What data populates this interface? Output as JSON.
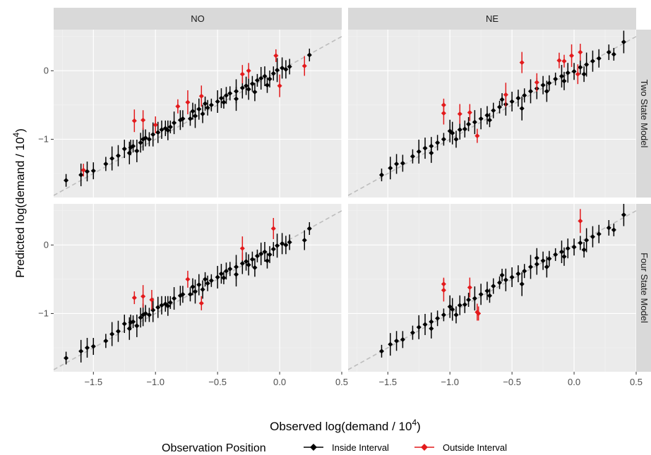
{
  "chart_data": {
    "type": "scatter",
    "subtype": "faceted scatter with vertical error bars",
    "xlabel": "Observed log(demand / 10",
    "xlabel_sup": "4",
    "xlabel_end": ")",
    "ylabel": "Predicted log(demand / 10",
    "ylabel_sup": "4",
    "ylabel_end": ")",
    "column_facets": [
      "NO",
      "NE"
    ],
    "row_facets": [
      "Two State Model",
      "Four State Model"
    ],
    "xlim": [
      -1.82,
      0.5
    ],
    "ylim": [
      -1.85,
      0.6
    ],
    "x_ticks": [
      -1.5,
      -1.0,
      -0.5,
      0.0,
      0.5
    ],
    "x_tick_labels": [
      "−1.5",
      "−1.0",
      "−0.5",
      "0.0",
      "0.5"
    ],
    "y_ticks": [
      0,
      -1
    ],
    "y_tick_labels": [
      "0",
      "−1"
    ],
    "reference_line": {
      "style": "dashed",
      "color": "#bdbdbd",
      "intercept": 0.0,
      "slope": 1.0
    },
    "grid": true,
    "panel_background": "#ebebeb",
    "strip_background": "#d9d9d9",
    "legend": {
      "title": "Observation Position",
      "position": "bottom",
      "entries": [
        {
          "label": "Inside Interval",
          "color": "#000000"
        },
        {
          "label": "Outside Interval",
          "color": "#e31a1c"
        }
      ]
    },
    "panels": [
      {
        "col": "NO",
        "row": "Two State Model",
        "inside": [
          [
            -1.72,
            -1.6
          ],
          [
            -1.6,
            -1.52
          ],
          [
            -1.55,
            -1.47
          ],
          [
            -1.5,
            -1.46
          ],
          [
            -1.4,
            -1.36
          ],
          [
            -1.35,
            -1.28
          ],
          [
            -1.3,
            -1.24
          ],
          [
            -1.25,
            -1.14
          ],
          [
            -1.2,
            -1.12
          ],
          [
            -1.18,
            -1.1
          ],
          [
            -1.15,
            -1.17
          ],
          [
            -1.12,
            -1.05
          ],
          [
            -1.08,
            -0.98
          ],
          [
            -1.05,
            -1.0
          ],
          [
            -1.02,
            -0.93
          ],
          [
            -0.98,
            -0.9
          ],
          [
            -0.95,
            -0.86
          ],
          [
            -0.92,
            -0.84
          ],
          [
            -0.88,
            -0.82
          ],
          [
            -0.85,
            -0.76
          ],
          [
            -0.8,
            -0.72
          ],
          [
            -0.78,
            -0.7
          ],
          [
            -0.72,
            -0.7
          ],
          [
            -0.68,
            -0.66
          ],
          [
            -0.65,
            -0.56
          ],
          [
            -0.62,
            -0.63
          ],
          [
            -0.58,
            -0.54
          ],
          [
            -0.55,
            -0.5
          ],
          [
            -0.5,
            -0.45
          ],
          [
            -0.47,
            -0.4
          ],
          [
            -0.43,
            -0.36
          ],
          [
            -0.4,
            -0.33
          ],
          [
            -0.35,
            -0.3
          ],
          [
            -0.3,
            -0.25
          ],
          [
            -0.27,
            -0.22
          ],
          [
            -0.22,
            -0.19
          ],
          [
            -0.18,
            -0.14
          ],
          [
            -0.15,
            -0.11
          ],
          [
            -0.12,
            -0.08
          ],
          [
            -0.08,
            -0.12
          ],
          [
            -0.05,
            -0.04
          ],
          [
            -0.02,
            0.01
          ],
          [
            0.02,
            0.04
          ],
          [
            0.05,
            0.02
          ],
          [
            0.08,
            0.06
          ],
          [
            0.24,
            0.23
          ],
          [
            -1.1,
            -1.0
          ],
          [
            -0.9,
            -0.87
          ],
          [
            -0.7,
            -0.59
          ],
          [
            -0.6,
            -0.48
          ],
          [
            -0.35,
            -0.41
          ],
          [
            -0.25,
            -0.27
          ],
          [
            -0.2,
            -0.31
          ],
          [
            -0.1,
            -0.21
          ],
          [
            -0.45,
            -0.46
          ],
          [
            -1.21,
            -1.2
          ]
        ],
        "outside": [
          [
            -1.58,
            -1.45
          ],
          [
            -1.17,
            -0.73
          ],
          [
            -1.1,
            -0.72
          ],
          [
            -1.0,
            -0.79
          ],
          [
            -0.82,
            -0.52
          ],
          [
            -0.74,
            -0.46
          ],
          [
            -0.63,
            -0.37
          ],
          [
            -0.3,
            -0.05
          ],
          [
            -0.25,
            0.0
          ],
          [
            -0.03,
            0.22
          ],
          [
            0.0,
            -0.22
          ],
          [
            0.2,
            0.07
          ]
        ]
      },
      {
        "col": "NE",
        "row": "Two State Model",
        "inside": [
          [
            -1.55,
            -1.52
          ],
          [
            -1.48,
            -1.42
          ],
          [
            -1.43,
            -1.36
          ],
          [
            -1.38,
            -1.35
          ],
          [
            -1.3,
            -1.25
          ],
          [
            -1.25,
            -1.18
          ],
          [
            -1.2,
            -1.13
          ],
          [
            -1.15,
            -1.1
          ],
          [
            -1.1,
            -1.05
          ],
          [
            -1.05,
            -1.0
          ],
          [
            -0.98,
            -0.91
          ],
          [
            -0.92,
            -0.86
          ],
          [
            -0.88,
            -0.85
          ],
          [
            -0.85,
            -0.78
          ],
          [
            -0.8,
            -0.75
          ],
          [
            -0.75,
            -0.7
          ],
          [
            -0.7,
            -0.65
          ],
          [
            -0.65,
            -0.58
          ],
          [
            -0.6,
            -0.53
          ],
          [
            -0.55,
            -0.49
          ],
          [
            -0.5,
            -0.45
          ],
          [
            -0.45,
            -0.4
          ],
          [
            -0.4,
            -0.36
          ],
          [
            -0.35,
            -0.3
          ],
          [
            -0.3,
            -0.26
          ],
          [
            -0.25,
            -0.21
          ],
          [
            -0.2,
            -0.18
          ],
          [
            -0.15,
            -0.12
          ],
          [
            -0.1,
            -0.08
          ],
          [
            -0.05,
            -0.03
          ],
          [
            0.0,
            -0.01
          ],
          [
            0.05,
            0.05
          ],
          [
            0.1,
            0.09
          ],
          [
            0.15,
            0.14
          ],
          [
            0.2,
            0.18
          ],
          [
            0.28,
            0.27
          ],
          [
            0.32,
            0.24
          ],
          [
            0.4,
            0.42
          ],
          [
            -1.15,
            -1.2
          ],
          [
            -0.95,
            -1.0
          ],
          [
            -0.68,
            -0.72
          ],
          [
            -0.42,
            -0.55
          ],
          [
            -0.22,
            -0.3
          ],
          [
            -0.08,
            -0.15
          ],
          [
            0.08,
            -0.05
          ],
          [
            -0.58,
            -0.42
          ],
          [
            -1.0,
            -0.88
          ]
        ],
        "outside": [
          [
            -1.05,
            -0.5
          ],
          [
            -1.05,
            -0.62
          ],
          [
            -0.92,
            -0.63
          ],
          [
            -0.84,
            -0.61
          ],
          [
            -0.78,
            -0.95
          ],
          [
            -0.55,
            -0.35
          ],
          [
            -0.42,
            0.12
          ],
          [
            -0.3,
            -0.17
          ],
          [
            -0.12,
            0.15
          ],
          [
            -0.08,
            0.14
          ],
          [
            -0.02,
            0.22
          ],
          [
            0.03,
            -0.05
          ],
          [
            0.05,
            0.27
          ]
        ]
      },
      {
        "col": "NO",
        "row": "Four State Model",
        "inside": [
          [
            -1.72,
            -1.65
          ],
          [
            -1.6,
            -1.55
          ],
          [
            -1.55,
            -1.5
          ],
          [
            -1.5,
            -1.48
          ],
          [
            -1.4,
            -1.4
          ],
          [
            -1.35,
            -1.3
          ],
          [
            -1.3,
            -1.26
          ],
          [
            -1.25,
            -1.15
          ],
          [
            -1.2,
            -1.13
          ],
          [
            -1.18,
            -1.12
          ],
          [
            -1.15,
            -1.18
          ],
          [
            -1.12,
            -1.06
          ],
          [
            -1.08,
            -1.0
          ],
          [
            -1.05,
            -1.02
          ],
          [
            -1.02,
            -0.95
          ],
          [
            -0.98,
            -0.91
          ],
          [
            -0.95,
            -0.88
          ],
          [
            -0.92,
            -0.86
          ],
          [
            -0.88,
            -0.84
          ],
          [
            -0.85,
            -0.78
          ],
          [
            -0.8,
            -0.74
          ],
          [
            -0.78,
            -0.72
          ],
          [
            -0.72,
            -0.72
          ],
          [
            -0.68,
            -0.68
          ],
          [
            -0.65,
            -0.58
          ],
          [
            -0.62,
            -0.65
          ],
          [
            -0.58,
            -0.56
          ],
          [
            -0.55,
            -0.52
          ],
          [
            -0.5,
            -0.47
          ],
          [
            -0.47,
            -0.42
          ],
          [
            -0.43,
            -0.38
          ],
          [
            -0.4,
            -0.35
          ],
          [
            -0.35,
            -0.32
          ],
          [
            -0.3,
            -0.27
          ],
          [
            -0.27,
            -0.24
          ],
          [
            -0.22,
            -0.21
          ],
          [
            -0.18,
            -0.16
          ],
          [
            -0.15,
            -0.13
          ],
          [
            -0.12,
            -0.1
          ],
          [
            -0.08,
            -0.14
          ],
          [
            -0.05,
            -0.06
          ],
          [
            -0.02,
            -0.01
          ],
          [
            0.02,
            0.02
          ],
          [
            0.05,
            0.0
          ],
          [
            0.08,
            0.04
          ],
          [
            0.24,
            0.24
          ],
          [
            -1.1,
            -1.02
          ],
          [
            -0.9,
            -0.89
          ],
          [
            -0.7,
            -0.61
          ],
          [
            -0.6,
            -0.5
          ],
          [
            -0.35,
            -0.43
          ],
          [
            -0.25,
            -0.29
          ],
          [
            -0.2,
            -0.33
          ],
          [
            -0.1,
            -0.23
          ],
          [
            -0.45,
            -0.48
          ],
          [
            -1.21,
            -1.22
          ],
          [
            0.2,
            0.07
          ]
        ],
        "outside": [
          [
            -1.17,
            -0.77
          ],
          [
            -1.1,
            -0.75
          ],
          [
            -1.03,
            -0.8
          ],
          [
            -0.74,
            -0.5
          ],
          [
            -0.63,
            -0.85
          ],
          [
            -0.3,
            -0.05
          ],
          [
            -0.05,
            0.24
          ]
        ]
      },
      {
        "col": "NE",
        "row": "Four State Model",
        "inside": [
          [
            -1.55,
            -1.55
          ],
          [
            -1.48,
            -1.45
          ],
          [
            -1.43,
            -1.4
          ],
          [
            -1.38,
            -1.38
          ],
          [
            -1.3,
            -1.28
          ],
          [
            -1.25,
            -1.2
          ],
          [
            -1.2,
            -1.16
          ],
          [
            -1.15,
            -1.12
          ],
          [
            -1.1,
            -1.07
          ],
          [
            -1.05,
            -1.02
          ],
          [
            -0.98,
            -0.94
          ],
          [
            -0.92,
            -0.88
          ],
          [
            -0.88,
            -0.87
          ],
          [
            -0.85,
            -0.8
          ],
          [
            -0.8,
            -0.78
          ],
          [
            -0.75,
            -0.72
          ],
          [
            -0.7,
            -0.67
          ],
          [
            -0.65,
            -0.6
          ],
          [
            -0.6,
            -0.55
          ],
          [
            -0.55,
            -0.51
          ],
          [
            -0.5,
            -0.47
          ],
          [
            -0.45,
            -0.42
          ],
          [
            -0.4,
            -0.38
          ],
          [
            -0.35,
            -0.32
          ],
          [
            -0.3,
            -0.28
          ],
          [
            -0.25,
            -0.23
          ],
          [
            -0.2,
            -0.2
          ],
          [
            -0.15,
            -0.14
          ],
          [
            -0.1,
            -0.1
          ],
          [
            -0.05,
            -0.05
          ],
          [
            0.0,
            -0.03
          ],
          [
            0.05,
            0.03
          ],
          [
            0.1,
            0.07
          ],
          [
            0.15,
            0.12
          ],
          [
            0.2,
            0.16
          ],
          [
            0.28,
            0.25
          ],
          [
            0.32,
            0.22
          ],
          [
            0.4,
            0.44
          ],
          [
            -1.15,
            -1.22
          ],
          [
            -0.95,
            -1.02
          ],
          [
            -0.68,
            -0.74
          ],
          [
            -0.42,
            -0.57
          ],
          [
            -0.22,
            -0.32
          ],
          [
            -0.08,
            -0.17
          ],
          [
            0.08,
            -0.07
          ],
          [
            -0.58,
            -0.44
          ],
          [
            -1.0,
            -0.9
          ],
          [
            -0.3,
            -0.19
          ]
        ],
        "outside": [
          [
            -1.05,
            -0.57
          ],
          [
            -1.05,
            -0.66
          ],
          [
            -0.84,
            -0.62
          ],
          [
            -0.78,
            -0.98
          ],
          [
            -0.77,
            -1.0
          ],
          [
            0.05,
            0.35
          ]
        ]
      }
    ]
  }
}
